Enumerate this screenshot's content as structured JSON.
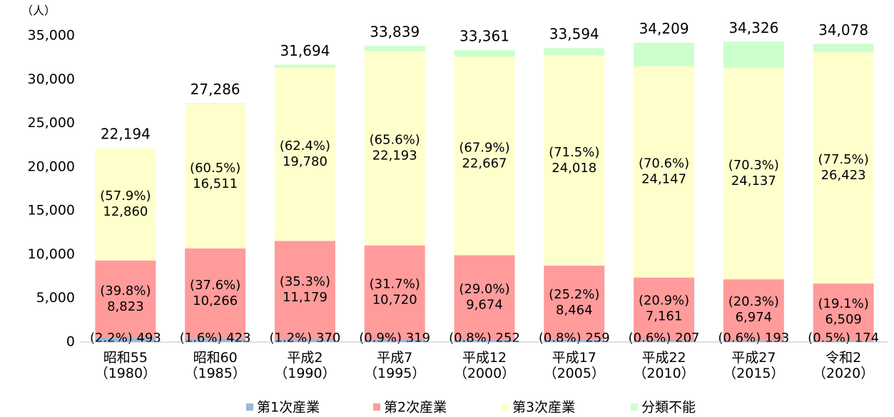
{
  "chart_data": {
    "type": "stacked_bar",
    "unit_label": "（人）",
    "categories": [
      "昭和55\n（1980）",
      "昭和60\n（1985）",
      "平成2\n（1990）",
      "平成7\n（1995）",
      "平成12\n（2000）",
      "平成17\n（2005）",
      "平成22\n（2010）",
      "平成27\n（2015）",
      "令和2\n（2020）"
    ],
    "series": [
      {
        "name": "第1次産業",
        "color": "#9db6d9",
        "values": [
          493,
          423,
          370,
          319,
          252,
          259,
          207,
          193,
          174
        ],
        "value_labels": [
          "(2.2%) 493",
          "(1.6%) 423",
          "(1.2%) 370",
          "(0.9%) 319",
          "(0.8%) 252",
          "(0.8%) 259",
          "(0.6%) 207",
          "(0.6%) 193",
          "(0.5%) 174"
        ]
      },
      {
        "name": "第2次産業",
        "color": "#ff9b9b",
        "values": [
          8823,
          10266,
          11179,
          10720,
          9674,
          8464,
          7161,
          6974,
          6509
        ],
        "value_labels": [
          "(39.8%)\n8,823",
          "(37.6%)\n10,266",
          "(35.3%)\n11,179",
          "(31.7%)\n10,720",
          "(29.0%)\n9,674",
          "(25.2%)\n8,464",
          "(20.9%)\n7,161",
          "(20.3%)\n6,974",
          "(19.1%)\n6,509"
        ]
      },
      {
        "name": "第3次産業",
        "color": "#ffffcc",
        "values": [
          12860,
          16511,
          19780,
          22193,
          22667,
          24018,
          24147,
          24137,
          26423
        ],
        "value_labels": [
          "(57.9%)\n12,860",
          "(60.5%)\n16,511",
          "(62.4%)\n19,780",
          "(65.6%)\n22,193",
          "(67.9%)\n22,667",
          "(71.5%)\n24,018",
          "(70.6%)\n24,147",
          "(70.3%)\n24,137",
          "(77.5%)\n26,423"
        ]
      },
      {
        "name": "分類不能",
        "color": "#ccffcc",
        "values": [
          18,
          86,
          365,
          607,
          768,
          853,
          2694,
          3022,
          972
        ]
      }
    ],
    "total_labels": [
      "22,194",
      "27,286",
      "31,694",
      "33,839",
      "33,361",
      "33,594",
      "34,209",
      "34,326",
      "34,078"
    ],
    "ylim": [
      0,
      35000
    ],
    "yticks": [
      0,
      {
        "value": 5000,
        "label": "5,000"
      },
      {
        "value": 10000,
        "label": "10,000"
      },
      {
        "value": 15000,
        "label": "15,000"
      },
      {
        "value": 20000,
        "label": "20,000"
      },
      {
        "value": 25000,
        "label": "25,000"
      },
      {
        "value": 30000,
        "label": "30,000"
      },
      {
        "value": 35000,
        "label": "35,000"
      }
    ],
    "grid": false,
    "legend": "bottom"
  }
}
